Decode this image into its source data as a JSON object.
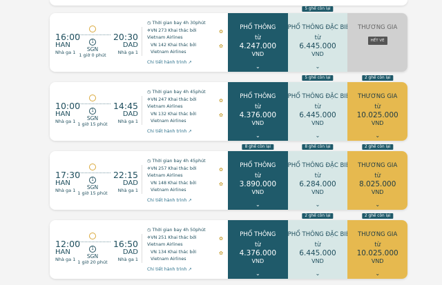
{
  "flights": [
    {
      "dep_time": "16:00",
      "arr_time": "20:30",
      "dep_code": "HAN",
      "arr_code": "DAD",
      "dep_terminal": "Nhà ga 1",
      "arr_terminal": "Nhà ga 1",
      "stops": "1",
      "stop_code": "SGN",
      "layover": "1 giờ 0 phút",
      "total": "Thời gian bay 4h 30phút",
      "segments": [
        "VN 273 Khai thác bởi Vietnam Airlines",
        "VN 142 Khai thác bởi Vietnam Airlines"
      ],
      "details": "Chi tiết hành trình",
      "fares": [
        {
          "name": "PHỔ THÔNG",
          "from": "từ",
          "price": "4.247.000",
          "currency": "VND",
          "badge": ""
        },
        {
          "name": "PHỔ THÔNG ĐẶC BIỆT",
          "from": "từ",
          "price": "6.445.000",
          "currency": "VND",
          "badge": "5 ghế còn lại"
        },
        {
          "name": "THƯƠNG GIA",
          "sold_out": "HẾT VÉ",
          "badge": ""
        }
      ]
    },
    {
      "dep_time": "10:00",
      "arr_time": "14:45",
      "dep_code": "HAN",
      "arr_code": "DAD",
      "dep_terminal": "Nhà ga 1",
      "arr_terminal": "Nhà ga 1",
      "stops": "1",
      "stop_code": "SGN",
      "layover": "1 giờ 15 phút",
      "total": "Thời gian bay 4h 45phút",
      "segments": [
        "VN 247 Khai thác bởi Vietnam Airlines",
        "VN 132 Khai thác bởi Vietnam Airlines"
      ],
      "details": "Chi tiết hành trình",
      "fares": [
        {
          "name": "PHỔ THÔNG",
          "from": "từ",
          "price": "4.376.000",
          "currency": "VND",
          "badge": ""
        },
        {
          "name": "PHỔ THÔNG ĐẶC BIỆT",
          "from": "từ",
          "price": "6.445.000",
          "currency": "VND",
          "badge": "5 ghế còn lại"
        },
        {
          "name": "THƯƠNG GIA",
          "from": "từ",
          "price": "10.025.000",
          "currency": "VND",
          "badge": "2 ghế còn lại"
        }
      ]
    },
    {
      "dep_time": "17:30",
      "arr_time": "22:15",
      "dep_code": "HAN",
      "arr_code": "DAD",
      "dep_terminal": "Nhà ga 1",
      "arr_terminal": "Nhà ga 1",
      "stops": "1",
      "stop_code": "SGN",
      "layover": "1 giờ 15 phút",
      "total": "Thời gian bay 4h 45phút",
      "segments": [
        "VN 257 Khai thác bởi Vietnam Airlines",
        "VN 148 Khai thác bởi Vietnam Airlines"
      ],
      "details": "Chi tiết hành trình",
      "fares": [
        {
          "name": "PHỔ THÔNG",
          "from": "từ",
          "price": "3.890.000",
          "currency": "VND",
          "badge": "8 ghế còn lại"
        },
        {
          "name": "PHỔ THÔNG ĐẶC BIỆT",
          "from": "từ",
          "price": "6.284.000",
          "currency": "VND",
          "badge": "8 ghế còn lại"
        },
        {
          "name": "THƯƠNG GIA",
          "from": "từ",
          "price": "8.025.000",
          "currency": "VND",
          "badge": "2 ghế còn lại"
        }
      ]
    },
    {
      "dep_time": "12:00",
      "arr_time": "16:50",
      "dep_code": "HAN",
      "arr_code": "DAD",
      "dep_terminal": "Nhà ga 1",
      "arr_terminal": "Nhà ga 1",
      "stops": "1",
      "stop_code": "SGN",
      "layover": "1 giờ 20 phút",
      "total": "Thời gian bay 4h 50phút",
      "segments": [
        "VN 251 Khai thác bởi Vietnam Airlines",
        "VN 134 Khai thác bởi Vietnam Airlines"
      ],
      "details": "Chi tiết hành trình",
      "fares": [
        {
          "name": "PHỔ THÔNG",
          "from": "từ",
          "price": "4.376.000",
          "currency": "VND",
          "badge": ""
        },
        {
          "name": "PHỔ THÔNG ĐẶC BIỆT",
          "from": "từ",
          "price": "6.445.000",
          "currency": "VND",
          "badge": "2 ghế còn lại"
        },
        {
          "name": "THƯƠNG GIA",
          "from": "từ",
          "price": "10.025.000",
          "currency": "VND",
          "badge": "2 ghế còn lại"
        }
      ]
    }
  ],
  "colors": {
    "economy": "#1f5a6a",
    "premium": "#d7e7e6",
    "business": "#e6b94f",
    "sold_out": "#d0d0d0"
  }
}
